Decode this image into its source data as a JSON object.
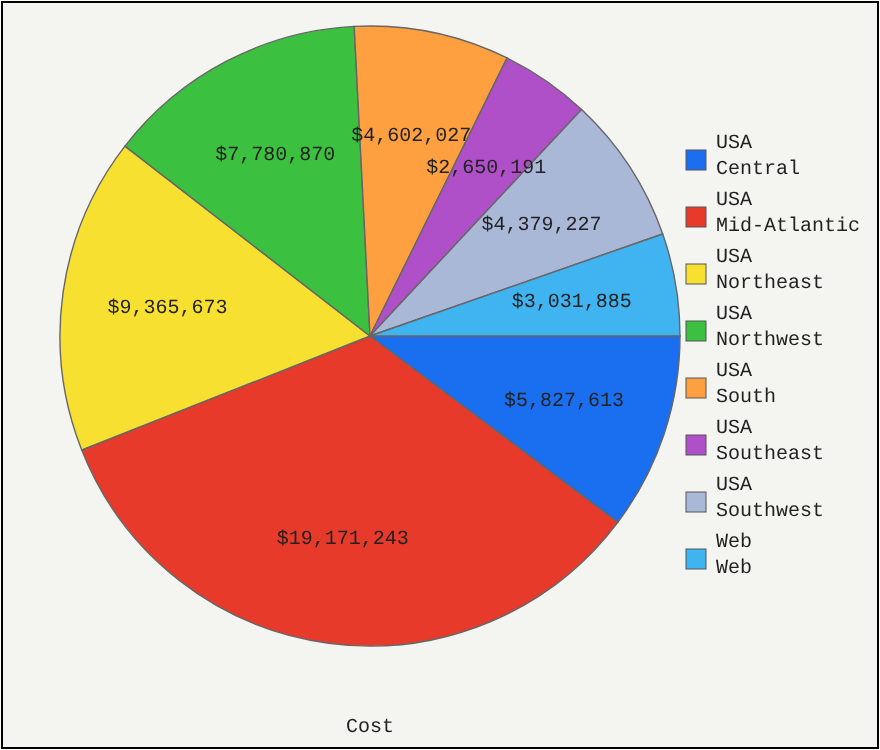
{
  "chart_data": {
    "type": "pie",
    "title": "Cost",
    "categories": [
      "USA Central",
      "USA Mid-Atlantic",
      "USA Northeast",
      "USA Northwest",
      "USA South",
      "USA Southeast",
      "USA Southwest",
      "Web Web"
    ],
    "values": [
      5827613,
      19171243,
      9365673,
      7780870,
      4602027,
      2650191,
      4379227,
      3031885
    ],
    "value_labels": [
      "$5,827,613",
      "$19,171,243",
      "$9,365,673",
      "$7,780,870",
      "$4,602,027",
      "$2,650,191",
      "$4,379,227",
      "$3,031,885"
    ],
    "colors": [
      "#1a6ef0",
      "#e83a2a",
      "#f8e030",
      "#3cc040",
      "#ffa040",
      "#b050c8",
      "#aab8d8",
      "#40b4f0"
    ],
    "legend": "right"
  }
}
